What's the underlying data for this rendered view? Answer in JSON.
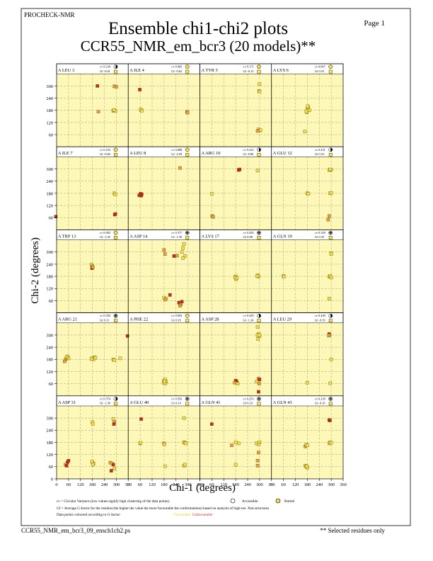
{
  "header": {
    "program": "PROCHECK-NMR",
    "title": "Ensemble chi1-chi2 plots",
    "subtitle": "CCR55_NMR_em_bcr3 (20 models)**",
    "page_label": "Page 1"
  },
  "footer": {
    "filename": "CCR55_NMR_em_bcr3_09_ensch1ch2.ps",
    "note": "** Selected residues only",
    "legend_cv": "cv = Circular Variance (low values signify high clustering of the data points).",
    "legend_accessible": "Accessible",
    "legend_buried": "Buried",
    "legend_gf": "Gf = Average G-factor for the residue (the higher the value the more favourable the conformations) based on analysis of high-res. Xtal structures",
    "legend_colour": "Data points coloured according to G-factor:",
    "legend_fav": "Favourable",
    "legend_unfav": "Unfavourable"
  },
  "colors": {
    "panel_bg": "#fdf8b8",
    "favourable": "#f4e04a",
    "medium": "#e6a040",
    "unfavourable": "#c8281c"
  },
  "chart_data": {
    "type": "scatter",
    "xlabel": "Chi-1 (degrees)",
    "ylabel": "Chi-2 (degrees)",
    "xlim": [
      0,
      360
    ],
    "ylim": [
      0,
      360
    ],
    "x_ticks": [
      0,
      60,
      120,
      180,
      240,
      300,
      360
    ],
    "y_ticks": [
      0,
      60,
      120,
      180,
      240,
      300
    ],
    "y_ticklabels": [
      "0",
      "60",
      "120",
      "180",
      "240",
      "300"
    ],
    "x_ticklabels": [
      "0",
      "60",
      "120",
      "180",
      "240",
      "300",
      "360"
    ],
    "panels": [
      {
        "name": "A LEU 3",
        "cv": "cv 0.234",
        "gf": "Gf -0.01",
        "acc": "half",
        "points": [
          [
            205,
            300,
            "u"
          ],
          [
            290,
            298,
            "m"
          ],
          [
            300,
            296,
            "m"
          ],
          [
            210,
            173,
            "m"
          ],
          [
            285,
            178,
            "f"
          ],
          [
            290,
            180,
            "f"
          ],
          [
            295,
            176,
            "f"
          ],
          [
            288,
            182,
            "f"
          ]
        ]
      },
      {
        "name": "A ILE 4",
        "cv": "cv 0.082",
        "gf": "Gf -0.62",
        "acc": "buried",
        "points": [
          [
            58,
            282,
            "u"
          ],
          [
            65,
            180,
            "f"
          ],
          [
            62,
            185,
            "f"
          ],
          [
            68,
            178,
            "f"
          ],
          [
            295,
            173,
            "m"
          ],
          [
            298,
            168,
            "m"
          ]
        ]
      },
      {
        "name": "A TYR 5",
        "cv": "cv 0.171",
        "gf": "Gf -0.13",
        "acc": "buried",
        "points": [
          [
            300,
            310,
            "f"
          ],
          [
            298,
            275,
            "f"
          ],
          [
            300,
            272,
            "f"
          ],
          [
            295,
            85,
            "f"
          ],
          [
            300,
            80,
            "f"
          ],
          [
            290,
            78,
            "m"
          ],
          [
            305,
            82,
            "f"
          ]
        ]
      },
      {
        "name": "A LYS 6",
        "cv": "cv 0.067",
        "gf": "Gf 0.53",
        "acc": "buried",
        "points": [
          [
            180,
            185,
            "f"
          ],
          [
            185,
            195,
            "f"
          ],
          [
            178,
            170,
            "f"
          ],
          [
            190,
            180,
            "f"
          ],
          [
            175,
            175,
            "f"
          ],
          [
            182,
            200,
            "f"
          ],
          [
            168,
            75,
            "f"
          ]
        ]
      },
      {
        "name": "A ILE 7",
        "cv": "cv 0.163",
        "gf": "Gf -0.60",
        "acc": "buried",
        "points": [
          [
            -5,
            65,
            "u"
          ],
          [
            290,
            180,
            "f"
          ],
          [
            295,
            175,
            "f"
          ],
          [
            292,
            75,
            "u"
          ],
          [
            296,
            78,
            "u"
          ]
        ]
      },
      {
        "name": "A LEU 8",
        "cv": "cv 0.088",
        "gf": "Gf -2.59",
        "acc": "buried",
        "points": [
          [
            60,
            172,
            "u"
          ],
          [
            65,
            168,
            "u"
          ],
          [
            62,
            178,
            "u"
          ],
          [
            68,
            175,
            "u"
          ],
          [
            55,
            170,
            "u"
          ],
          [
            260,
            305,
            "m"
          ]
        ]
      },
      {
        "name": "A ARG 10",
        "cv": "cv 0.222",
        "gf": "Gf -0.80",
        "acc": "half",
        "points": [
          [
            195,
            295,
            "u"
          ],
          [
            200,
            298,
            "u"
          ],
          [
            290,
            292,
            "f"
          ],
          [
            60,
            178,
            "f"
          ],
          [
            62,
            68,
            "m"
          ],
          [
            66,
            63,
            "m"
          ]
        ]
      },
      {
        "name": "A GLU 12",
        "cv": "cv 0.431",
        "gf": "Gf 0.53",
        "acc": "half",
        "points": [
          [
            290,
            295,
            "f"
          ],
          [
            300,
            296,
            "f"
          ],
          [
            295,
            298,
            "f"
          ],
          [
            180,
            180,
            "f"
          ],
          [
            185,
            178,
            "f"
          ],
          [
            295,
            180,
            "f"
          ],
          [
            300,
            182,
            "f"
          ],
          [
            290,
            68,
            "m"
          ],
          [
            285,
            50,
            "m"
          ]
        ]
      },
      {
        "name": "A TRP 13",
        "cv": "cv 0.003",
        "gf": "Gf -1.45",
        "acc": "buried",
        "points": [
          [
            175,
            238,
            "f"
          ],
          [
            180,
            230,
            "m"
          ],
          [
            178,
            220,
            "u"
          ],
          [
            182,
            225,
            "m"
          ]
        ]
      },
      {
        "name": "A ASP 14",
        "cv": "cv 0.377",
        "gf": "Gf -1.30",
        "acc": "access",
        "points": [
          [
            180,
            310,
            "m"
          ],
          [
            185,
            290,
            "m"
          ],
          [
            230,
            280,
            "u"
          ],
          [
            245,
            282,
            "m"
          ],
          [
            280,
            340,
            "f"
          ],
          [
            275,
            320,
            "f"
          ],
          [
            270,
            300,
            "f"
          ],
          [
            285,
            280,
            "f"
          ],
          [
            275,
            270,
            "f"
          ],
          [
            180,
            75,
            "f"
          ],
          [
            190,
            70,
            "f"
          ],
          [
            185,
            65,
            "m"
          ],
          [
            210,
            88,
            "u"
          ],
          [
            255,
            50,
            "u"
          ],
          [
            265,
            42,
            "m"
          ],
          [
            270,
            55,
            "u"
          ],
          [
            260,
            35,
            "m"
          ]
        ]
      },
      {
        "name": "A LYS 17",
        "cv": "cv 0.205",
        "gf": "Gf 0.88",
        "acc": "access",
        "points": [
          [
            180,
            180,
            "f"
          ],
          [
            182,
            165,
            "f"
          ],
          [
            178,
            175,
            "f"
          ],
          [
            185,
            172,
            "f"
          ],
          [
            290,
            185,
            "f"
          ],
          [
            295,
            178,
            "f"
          ],
          [
            288,
            182,
            "f"
          ]
        ]
      },
      {
        "name": "A GLN 19",
        "cv": "cv 0.329",
        "gf": "Gf 0.35",
        "acc": "access",
        "points": [
          [
            300,
            295,
            "f"
          ],
          [
            300,
            290,
            "f"
          ],
          [
            60,
            182,
            "f"
          ],
          [
            62,
            178,
            "f"
          ],
          [
            290,
            178,
            "f"
          ],
          [
            295,
            182,
            "f"
          ],
          [
            300,
            174,
            "f"
          ],
          [
            290,
            70,
            "f"
          ]
        ]
      },
      {
        "name": "A ARG 21",
        "cv": "cv 0.292",
        "gf": "Gf 0.11",
        "acc": "access",
        "points": [
          [
            55,
            195,
            "f"
          ],
          [
            60,
            185,
            "f"
          ],
          [
            50,
            190,
            "f"
          ],
          [
            45,
            180,
            "m"
          ],
          [
            40,
            170,
            "m"
          ],
          [
            180,
            185,
            "f"
          ],
          [
            190,
            190,
            "f"
          ],
          [
            185,
            180,
            "f"
          ],
          [
            175,
            182,
            "f"
          ],
          [
            195,
            188,
            "f"
          ],
          [
            285,
            180,
            "f"
          ],
          [
            290,
            176,
            "f"
          ],
          [
            320,
            185,
            "f"
          ]
        ]
      },
      {
        "name": "A PHE 22",
        "cv": "cv 0.092",
        "gf": "Gf 0.29",
        "acc": "buried",
        "points": [
          [
            -5,
            295,
            "u"
          ],
          [
            180,
            75,
            "f"
          ],
          [
            185,
            80,
            "f"
          ],
          [
            178,
            65,
            "f"
          ],
          [
            190,
            70,
            "f"
          ],
          [
            185,
            60,
            "f"
          ],
          [
            182,
            72,
            "f"
          ]
        ]
      },
      {
        "name": "A ASP 28",
        "cv": "cv 0.439",
        "gf": "Gf -1.24",
        "acc": "half",
        "points": [
          [
            290,
            340,
            "f"
          ],
          [
            295,
            305,
            "f"
          ],
          [
            300,
            295,
            "f"
          ],
          [
            290,
            300,
            "f"
          ],
          [
            292,
            280,
            "f"
          ],
          [
            300,
            300,
            "f"
          ],
          [
            180,
            75,
            "u"
          ],
          [
            185,
            70,
            "u"
          ],
          [
            175,
            65,
            "m"
          ],
          [
            190,
            60,
            "f"
          ],
          [
            295,
            85,
            "m"
          ],
          [
            300,
            80,
            "u"
          ],
          [
            298,
            60,
            "m"
          ],
          [
            295,
            20,
            "u"
          ],
          [
            285,
            70,
            "f"
          ]
        ]
      },
      {
        "name": "A LEU 29",
        "cv": "cv 0.449",
        "gf": "Gf -0.19",
        "acc": "half",
        "points": [
          [
            290,
            305,
            "u"
          ],
          [
            292,
            300,
            "m"
          ],
          [
            288,
            297,
            "m"
          ],
          [
            300,
            180,
            "f"
          ],
          [
            180,
            65,
            "f"
          ],
          [
            295,
            62,
            "f"
          ]
        ]
      },
      {
        "name": "A ASP 31",
        "cv": "cv 0.574",
        "gf": "Gf -1.39",
        "acc": "half",
        "points": [
          [
            55,
            82,
            "u"
          ],
          [
            60,
            90,
            "u"
          ],
          [
            45,
            70,
            "m"
          ],
          [
            50,
            65,
            "u"
          ],
          [
            180,
            280,
            "f"
          ],
          [
            182,
            270,
            "f"
          ],
          [
            285,
            295,
            "f"
          ],
          [
            290,
            280,
            "m"
          ],
          [
            288,
            270,
            "u"
          ],
          [
            180,
            80,
            "f"
          ],
          [
            185,
            75,
            "f"
          ],
          [
            182,
            70,
            "f"
          ],
          [
            178,
            85,
            "f"
          ],
          [
            270,
            80,
            "m"
          ],
          [
            280,
            75,
            "f"
          ],
          [
            285,
            70,
            "u"
          ],
          [
            275,
            40,
            "u"
          ],
          [
            290,
            50,
            "f"
          ]
        ]
      },
      {
        "name": "A GLU 40",
        "cv": "cv 0.593",
        "gf": "Gf 0.14",
        "acc": "access",
        "points": [
          [
            65,
            295,
            "u"
          ],
          [
            60,
            175,
            "f"
          ],
          [
            62,
            178,
            "f"
          ],
          [
            180,
            175,
            "m"
          ],
          [
            182,
            170,
            "f"
          ],
          [
            280,
            300,
            "f"
          ],
          [
            280,
            180,
            "f"
          ],
          [
            285,
            178,
            "f"
          ],
          [
            290,
            175,
            "f"
          ],
          [
            185,
            62,
            "f"
          ],
          [
            280,
            65,
            "f"
          ],
          [
            285,
            70,
            "f"
          ]
        ]
      },
      {
        "name": "A GLN 41",
        "cv": "cv 0.253",
        "gf": "Gf 0.33",
        "acc": "access",
        "points": [
          [
            60,
            270,
            "u"
          ],
          [
            160,
            165,
            "m"
          ],
          [
            180,
            180,
            "f"
          ],
          [
            195,
            175,
            "f"
          ],
          [
            285,
            175,
            "f"
          ],
          [
            300,
            180,
            "f"
          ],
          [
            295,
            170,
            "f"
          ],
          [
            295,
            130,
            "m"
          ],
          [
            290,
            90,
            "m"
          ],
          [
            290,
            65,
            "m"
          ],
          [
            180,
            70,
            "f"
          ]
        ]
      },
      {
        "name": "A GLN 43",
        "cv": "cv 0.239",
        "gf": "Gf -0.16",
        "acc": "access",
        "points": [
          [
            290,
            290,
            "u"
          ],
          [
            294,
            288,
            "u"
          ],
          [
            170,
            160,
            "m"
          ],
          [
            175,
            168,
            "f"
          ],
          [
            180,
            165,
            "f"
          ],
          [
            290,
            175,
            "f"
          ],
          [
            295,
            180,
            "f"
          ],
          [
            300,
            178,
            "f"
          ],
          [
            170,
            65,
            "f"
          ],
          [
            175,
            60,
            "f"
          ],
          [
            180,
            55,
            "f"
          ],
          [
            178,
            62,
            "f"
          ]
        ]
      }
    ]
  }
}
